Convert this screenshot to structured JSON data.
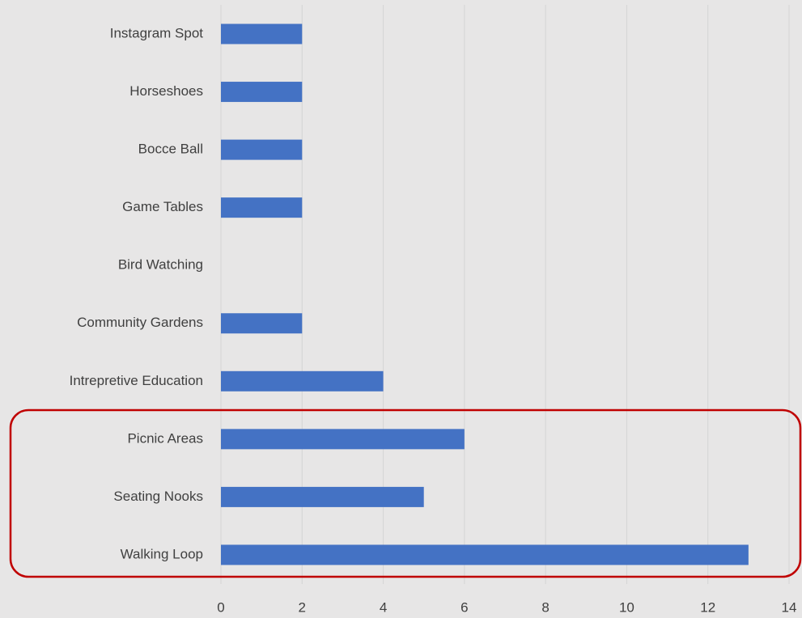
{
  "chart_data": {
    "type": "bar",
    "orientation": "horizontal",
    "categories": [
      "Instagram Spot",
      "Horseshoes",
      "Bocce Ball",
      "Game Tables",
      "Bird Watching",
      "Community Gardens",
      "Intrepretive Education",
      "Picnic Areas",
      "Seating Nooks",
      "Walking Loop"
    ],
    "values": [
      2,
      2,
      2,
      2,
      0,
      2,
      4,
      6,
      5,
      13
    ],
    "color": "#4472c4",
    "xlim": [
      0,
      14
    ],
    "xticks": [
      0,
      2,
      4,
      6,
      8,
      10,
      12,
      14
    ],
    "grid": true
  }
}
